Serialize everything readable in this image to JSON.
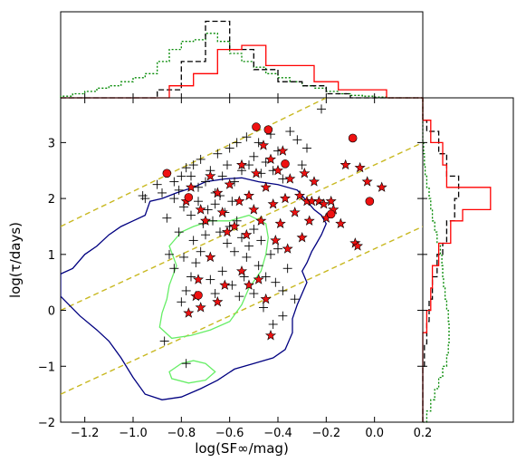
{
  "chart_data": {
    "type": "scatter",
    "xlabel": "log(SF∞/mag)",
    "ylabel": "log(τ/days)",
    "xlim": [
      -1.3,
      0.2
    ],
    "ylim": [
      -2,
      3.8
    ],
    "x_ticks": [
      -1.2,
      -1.0,
      -0.8,
      -0.6,
      -0.4,
      -0.2,
      0.0,
      0.2
    ],
    "x_tick_labels": [
      "−1.2",
      "−1.0",
      "−0.8",
      "−0.6",
      "−0.4",
      "−0.2",
      "0.0",
      "0.2"
    ],
    "y_ticks": [
      -2,
      -1,
      0,
      1,
      2,
      3
    ],
    "y_tick_labels": [
      "−2",
      "−1",
      "0",
      "1",
      "2",
      "3"
    ],
    "colors": {
      "plus": "#000000",
      "star_fill": "#ee1111",
      "circle_fill": "#ee1111",
      "outer_contour": "#000080",
      "inner_contour": "#66ee66",
      "dashed_lines": "#c8b820",
      "hist_red": "#ff0000",
      "hist_black": "#000000",
      "hist_green": "#008800"
    },
    "series": [
      {
        "marker": "plus",
        "points": [
          [
            -0.96,
            2.05
          ],
          [
            -0.88,
            2.1
          ],
          [
            -0.83,
            2.3
          ],
          [
            -0.81,
            2.15
          ],
          [
            -0.8,
            2.4
          ],
          [
            -0.78,
            2.55
          ],
          [
            -0.76,
            2.4
          ],
          [
            -0.75,
            2.6
          ],
          [
            -0.73,
            2.2
          ],
          [
            -0.72,
            2.7
          ],
          [
            -0.7,
            2.3
          ],
          [
            -0.68,
            2.5
          ],
          [
            -0.66,
            2.1
          ],
          [
            -0.65,
            2.8
          ],
          [
            -0.63,
            2.4
          ],
          [
            -0.61,
            2.6
          ],
          [
            -0.6,
            2.9
          ],
          [
            -0.58,
            2.3
          ],
          [
            -0.57,
            3.0
          ],
          [
            -0.55,
            2.5
          ],
          [
            -0.53,
            3.1
          ],
          [
            -0.52,
            2.6
          ],
          [
            -0.5,
            2.75
          ],
          [
            -0.48,
            3.0
          ],
          [
            -0.47,
            2.45
          ],
          [
            -0.45,
            2.65
          ],
          [
            -0.43,
            3.15
          ],
          [
            -0.42,
            2.5
          ],
          [
            -0.4,
            2.85
          ],
          [
            -0.38,
            2.35
          ],
          [
            -0.35,
            3.2
          ],
          [
            -0.32,
            3.05
          ],
          [
            -0.3,
            2.6
          ],
          [
            -0.28,
            2.9
          ],
          [
            -0.22,
            3.6
          ],
          [
            -0.83,
            2.0
          ],
          [
            -0.79,
            1.85
          ],
          [
            -0.76,
            1.7
          ],
          [
            -0.73,
            1.95
          ],
          [
            -0.71,
            1.55
          ],
          [
            -0.69,
            1.8
          ],
          [
            -0.67,
            1.6
          ],
          [
            -0.66,
            1.9
          ],
          [
            -0.64,
            1.4
          ],
          [
            -0.62,
            1.75
          ],
          [
            -0.61,
            1.2
          ],
          [
            -0.6,
            1.5
          ],
          [
            -0.58,
            1.05
          ],
          [
            -0.57,
            1.6
          ],
          [
            -0.55,
            1.3
          ],
          [
            -0.53,
            0.95
          ],
          [
            -0.52,
            1.15
          ],
          [
            -0.5,
            1.45
          ],
          [
            -0.48,
            0.8
          ],
          [
            -0.47,
            1.25
          ],
          [
            -0.45,
            0.6
          ],
          [
            -0.43,
            1.0
          ],
          [
            -0.41,
            0.5
          ],
          [
            -0.4,
            1.1
          ],
          [
            -0.38,
            0.35
          ],
          [
            -0.36,
            0.75
          ],
          [
            -0.7,
            1.35
          ],
          [
            -0.72,
            1.05
          ],
          [
            -0.74,
            0.85
          ],
          [
            -0.76,
            0.6
          ],
          [
            -0.78,
            0.35
          ],
          [
            -0.8,
            0.15
          ],
          [
            -0.83,
            0.75
          ],
          [
            -0.85,
            1.0
          ],
          [
            -0.79,
            0.95
          ],
          [
            -0.75,
            1.25
          ],
          [
            -0.68,
            0.55
          ],
          [
            -0.66,
            0.3
          ],
          [
            -0.63,
            0.7
          ],
          [
            -0.59,
            0.45
          ],
          [
            -0.56,
            0.25
          ],
          [
            -0.54,
            0.6
          ],
          [
            -0.5,
            0.3
          ],
          [
            -0.46,
            0.05
          ],
          [
            -0.42,
            -0.25
          ],
          [
            -0.38,
            -0.1
          ],
          [
            -0.33,
            0.2
          ],
          [
            -0.87,
            -0.55
          ],
          [
            -0.78,
            -0.95
          ],
          [
            -0.95,
            2.0
          ],
          [
            -0.9,
            2.25
          ],
          [
            -0.86,
            1.65
          ],
          [
            -0.81,
            1.4
          ],
          [
            -0.64,
            2.05
          ],
          [
            -0.59,
            1.95
          ]
        ]
      },
      {
        "marker": "star",
        "points": [
          [
            -0.78,
            1.95
          ],
          [
            -0.76,
            2.2
          ],
          [
            -0.72,
            1.8
          ],
          [
            -0.7,
            1.6
          ],
          [
            -0.68,
            2.4
          ],
          [
            -0.65,
            2.1
          ],
          [
            -0.63,
            1.75
          ],
          [
            -0.61,
            1.4
          ],
          [
            -0.6,
            2.25
          ],
          [
            -0.58,
            1.5
          ],
          [
            -0.56,
            1.95
          ],
          [
            -0.55,
            2.6
          ],
          [
            -0.53,
            1.35
          ],
          [
            -0.52,
            2.05
          ],
          [
            -0.5,
            1.8
          ],
          [
            -0.49,
            2.45
          ],
          [
            -0.47,
            1.6
          ],
          [
            -0.46,
            2.95
          ],
          [
            -0.45,
            2.2
          ],
          [
            -0.43,
            2.7
          ],
          [
            -0.42,
            1.9
          ],
          [
            -0.41,
            1.25
          ],
          [
            -0.4,
            2.5
          ],
          [
            -0.39,
            1.55
          ],
          [
            -0.38,
            2.85
          ],
          [
            -0.37,
            2.0
          ],
          [
            -0.36,
            1.1
          ],
          [
            -0.35,
            2.35
          ],
          [
            -0.33,
            1.75
          ],
          [
            -0.31,
            2.05
          ],
          [
            -0.3,
            1.3
          ],
          [
            -0.29,
            2.45
          ],
          [
            -0.28,
            1.95
          ],
          [
            -0.27,
            1.6
          ],
          [
            -0.26,
            1.95
          ],
          [
            -0.25,
            2.3
          ],
          [
            -0.23,
            1.95
          ],
          [
            -0.21,
            1.9
          ],
          [
            -0.2,
            1.65
          ],
          [
            -0.18,
            1.95
          ],
          [
            -0.17,
            1.8
          ],
          [
            -0.14,
            1.55
          ],
          [
            -0.12,
            2.6
          ],
          [
            -0.08,
            1.2
          ],
          [
            -0.07,
            1.15
          ],
          [
            -0.06,
            2.55
          ],
          [
            -0.03,
            2.3
          ],
          [
            0.03,
            2.2
          ],
          [
            -0.45,
            0.2
          ],
          [
            -0.48,
            0.55
          ],
          [
            -0.43,
            -0.45
          ],
          [
            -0.52,
            0.45
          ],
          [
            -0.55,
            0.7
          ],
          [
            -0.62,
            0.45
          ],
          [
            -0.65,
            0.15
          ],
          [
            -0.68,
            0.95
          ],
          [
            -0.72,
            0.05
          ],
          [
            -0.74,
            0.25
          ],
          [
            -0.77,
            -0.05
          ],
          [
            -0.73,
            0.55
          ]
        ]
      },
      {
        "marker": "circle",
        "points": [
          [
            -0.86,
            2.45
          ],
          [
            -0.77,
            2.02
          ],
          [
            -0.73,
            0.27
          ],
          [
            -0.49,
            3.28
          ],
          [
            -0.44,
            3.23
          ],
          [
            -0.37,
            2.62
          ],
          [
            -0.18,
            1.72
          ],
          [
            -0.09,
            3.08
          ],
          [
            -0.02,
            1.95
          ]
        ]
      }
    ],
    "dashed_lines": [
      {
        "x": [
          -1.3,
          -0.2
        ],
        "y": [
          1.5,
          3.8
        ]
      },
      {
        "x": [
          -1.3,
          0.2
        ],
        "y": [
          0.0,
          3.0
        ]
      },
      {
        "x": [
          -1.3,
          0.2
        ],
        "y": [
          -1.5,
          1.5
        ]
      }
    ],
    "contours": [
      {
        "level": "outer",
        "points": [
          [
            -1.3,
            0.65
          ],
          [
            -1.25,
            0.75
          ],
          [
            -1.2,
            1.0
          ],
          [
            -1.15,
            1.15
          ],
          [
            -1.1,
            1.35
          ],
          [
            -1.05,
            1.5
          ],
          [
            -1.0,
            1.6
          ],
          [
            -0.95,
            1.7
          ],
          [
            -0.93,
            1.95
          ],
          [
            -0.88,
            2.0
          ],
          [
            -0.82,
            2.1
          ],
          [
            -0.75,
            2.2
          ],
          [
            -0.7,
            2.3
          ],
          [
            -0.62,
            2.35
          ],
          [
            -0.55,
            2.37
          ],
          [
            -0.48,
            2.3
          ],
          [
            -0.4,
            2.25
          ],
          [
            -0.32,
            2.15
          ],
          [
            -0.28,
            1.95
          ],
          [
            -0.25,
            1.8
          ],
          [
            -0.22,
            1.7
          ],
          [
            -0.2,
            1.55
          ],
          [
            -0.22,
            1.35
          ],
          [
            -0.24,
            1.2
          ],
          [
            -0.26,
            1.05
          ],
          [
            -0.28,
            0.85
          ],
          [
            -0.3,
            0.7
          ],
          [
            -0.28,
            0.5
          ],
          [
            -0.3,
            0.3
          ],
          [
            -0.32,
            0.1
          ],
          [
            -0.34,
            -0.15
          ],
          [
            -0.34,
            -0.4
          ],
          [
            -0.37,
            -0.7
          ],
          [
            -0.42,
            -0.85
          ],
          [
            -0.5,
            -0.95
          ],
          [
            -0.58,
            -1.05
          ],
          [
            -0.65,
            -1.25
          ],
          [
            -0.72,
            -1.4
          ],
          [
            -0.8,
            -1.55
          ],
          [
            -0.88,
            -1.6
          ],
          [
            -0.95,
            -1.5
          ],
          [
            -1.0,
            -1.2
          ],
          [
            -1.05,
            -0.85
          ],
          [
            -1.1,
            -0.55
          ],
          [
            -1.15,
            -0.35
          ],
          [
            -1.22,
            -0.1
          ],
          [
            -1.3,
            0.25
          ]
        ]
      },
      {
        "level": "inner",
        "points": [
          [
            -0.85,
            0.45
          ],
          [
            -0.82,
            0.8
          ],
          [
            -0.85,
            1.15
          ],
          [
            -0.8,
            1.4
          ],
          [
            -0.75,
            1.5
          ],
          [
            -0.68,
            1.6
          ],
          [
            -0.6,
            1.6
          ],
          [
            -0.52,
            1.7
          ],
          [
            -0.45,
            1.55
          ],
          [
            -0.44,
            1.3
          ],
          [
            -0.45,
            1.0
          ],
          [
            -0.47,
            0.7
          ],
          [
            -0.52,
            0.4
          ],
          [
            -0.55,
            0.1
          ],
          [
            -0.6,
            -0.2
          ],
          [
            -0.68,
            -0.35
          ],
          [
            -0.76,
            -0.45
          ],
          [
            -0.84,
            -0.5
          ],
          [
            -0.89,
            -0.3
          ],
          [
            -0.88,
            -0.05
          ],
          [
            -0.86,
            0.2
          ]
        ]
      },
      {
        "level": "inner-small",
        "points": [
          [
            -0.85,
            -1.1
          ],
          [
            -0.8,
            -0.95
          ],
          [
            -0.75,
            -0.9
          ],
          [
            -0.7,
            -0.95
          ],
          [
            -0.66,
            -1.1
          ],
          [
            -0.7,
            -1.25
          ],
          [
            -0.77,
            -1.3
          ],
          [
            -0.84,
            -1.22
          ]
        ]
      }
    ],
    "top_hist": {
      "bins": [
        -1.3,
        -1.25,
        -1.2,
        -1.15,
        -1.1,
        -1.05,
        -1.0,
        -0.95,
        -0.9,
        -0.85,
        -0.8,
        -0.75,
        -0.7,
        -0.65,
        -0.6,
        -0.55,
        -0.5,
        -0.45,
        -0.4,
        -0.35,
        -0.3,
        -0.25,
        -0.2,
        -0.15,
        -0.1,
        -0.05,
        0.0,
        0.05,
        0.1,
        0.15,
        0.2
      ],
      "red": [
        0,
        0,
        0,
        0,
        0,
        0,
        0,
        0,
        0,
        0.15,
        0.15,
        0.3,
        0.3,
        0.6,
        0.6,
        0.65,
        0.65,
        0.4,
        0.4,
        0.4,
        0.4,
        0.2,
        0.2,
        0.1,
        0.1,
        0.1,
        0.1,
        0,
        0,
        0
      ],
      "black": [
        0,
        0,
        0,
        0,
        0,
        0,
        0,
        0,
        0.1,
        0.1,
        0.45,
        0.45,
        0.95,
        0.95,
        0.6,
        0.6,
        0.35,
        0.35,
        0.2,
        0.2,
        0.15,
        0.15,
        0.05,
        0.05,
        0,
        0,
        0,
        0,
        0,
        0
      ],
      "green": [
        0.02,
        0.05,
        0.08,
        0.12,
        0.15,
        0.2,
        0.25,
        0.3,
        0.45,
        0.6,
        0.7,
        0.72,
        0.8,
        0.7,
        0.55,
        0.45,
        0.38,
        0.3,
        0.25,
        0.2,
        0.15,
        0.12,
        0.08,
        0.05,
        0.03,
        0.02,
        0.01,
        0,
        0,
        0
      ]
    },
    "right_hist": {
      "bins": [
        -2.0,
        -1.8,
        -1.6,
        -1.4,
        -1.2,
        -1.0,
        -0.8,
        -0.6,
        -0.4,
        -0.2,
        0.0,
        0.2,
        0.4,
        0.6,
        0.8,
        1.0,
        1.2,
        1.4,
        1.6,
        1.8,
        2.0,
        2.2,
        2.4,
        2.6,
        2.8,
        3.0,
        3.2,
        3.4,
        3.6,
        3.8
      ],
      "red": [
        0,
        0,
        0,
        0,
        0,
        0,
        0,
        0,
        0.05,
        0.05,
        0.1,
        0.1,
        0.12,
        0.12,
        0.2,
        0.2,
        0.35,
        0.35,
        0.5,
        0.85,
        0.85,
        0.3,
        0.3,
        0.25,
        0.25,
        0.1,
        0.1,
        0,
        0
      ],
      "black": [
        0,
        0,
        0,
        0,
        0,
        0.02,
        0.02,
        0.05,
        0.05,
        0.08,
        0.08,
        0.12,
        0.12,
        0.18,
        0.18,
        0.25,
        0.3,
        0.3,
        0.4,
        0.4,
        0.45,
        0.45,
        0.3,
        0.3,
        0.2,
        0.2,
        0.05,
        0,
        0
      ],
      "green": [
        0.05,
        0.1,
        0.15,
        0.2,
        0.25,
        0.3,
        0.32,
        0.33,
        0.33,
        0.32,
        0.3,
        0.28,
        0.26,
        0.25,
        0.24,
        0.22,
        0.18,
        0.15,
        0.12,
        0.1,
        0.08,
        0.05,
        0.03,
        0.02,
        0.01,
        0,
        0,
        0,
        0
      ]
    }
  }
}
